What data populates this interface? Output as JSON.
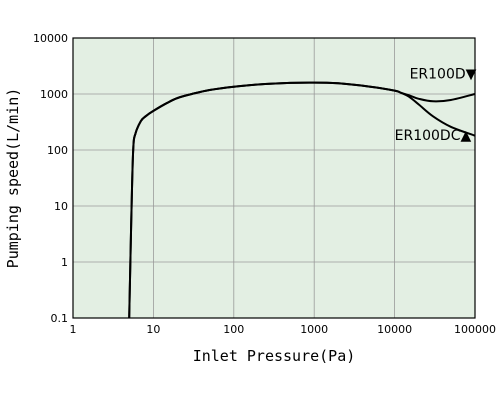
{
  "chart_data": {
    "type": "line",
    "xlabel": "Inlet Pressure(Pa)",
    "ylabel": "Pumping speed(L/min)",
    "x_scale": "log",
    "y_scale": "log",
    "xlim": [
      1,
      100000
    ],
    "ylim": [
      0.1,
      10000
    ],
    "x_ticks": [
      "1",
      "10",
      "100",
      "1000",
      "10000",
      "100000"
    ],
    "y_ticks": [
      "0.1",
      "1",
      "10",
      "100",
      "1000",
      "10000"
    ],
    "grid": true,
    "plot_background": "#e3efe3",
    "line_color": "#000000",
    "series": [
      {
        "name": "ER100D▼",
        "x": [
          5,
          5.3,
          5.6,
          6,
          7,
          8,
          10,
          15,
          20,
          30,
          50,
          100,
          200,
          500,
          1000,
          2000,
          5000,
          10000,
          12000,
          15000,
          20000,
          30000,
          50000,
          100000
        ],
        "y": [
          0.1,
          5,
          100,
          200,
          330,
          400,
          500,
          700,
          850,
          1000,
          1180,
          1350,
          1480,
          1580,
          1600,
          1550,
          1350,
          1150,
          1050,
          950,
          820,
          740,
          780,
          1000
        ]
      },
      {
        "name": "ER100DC▲",
        "x": [
          5,
          5.3,
          5.6,
          6,
          7,
          8,
          10,
          15,
          20,
          30,
          50,
          100,
          200,
          500,
          1000,
          2000,
          5000,
          10000,
          12000,
          15000,
          20000,
          30000,
          50000,
          100000
        ],
        "y": [
          0.1,
          5,
          100,
          200,
          330,
          400,
          500,
          700,
          850,
          1000,
          1180,
          1350,
          1480,
          1580,
          1600,
          1550,
          1350,
          1150,
          1050,
          900,
          650,
          400,
          260,
          180
        ]
      }
    ],
    "annotations": [
      {
        "text": "ER100D▼",
        "x": 40000,
        "y": 1900
      },
      {
        "text": "ER100DC▲",
        "x": 30000,
        "y": 150
      }
    ]
  }
}
